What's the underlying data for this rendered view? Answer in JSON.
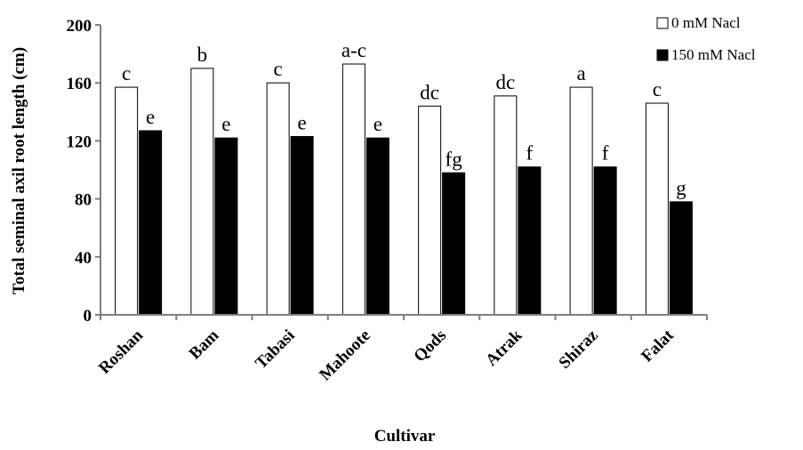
{
  "chart_data": {
    "type": "bar",
    "title": "",
    "xlabel": "Cultivar",
    "ylabel": "Total seminal axil root length (cm)",
    "ylim": [
      0,
      200
    ],
    "yticks": [
      0,
      40,
      80,
      120,
      160,
      200
    ],
    "grid": false,
    "legend_position": "top-right",
    "categories": [
      "Roshan",
      "Bam",
      "Tabasi",
      "Mahoote",
      "Qods",
      "Atrak",
      "Shiraz",
      "Falat"
    ],
    "series": [
      {
        "name": "0 mM Nacl",
        "color": "#ffffff",
        "values": [
          157,
          170,
          160,
          173,
          144,
          151,
          157,
          146
        ],
        "letters": [
          "c",
          "b",
          "c",
          "a-c",
          "dc",
          "dc",
          "a",
          "c"
        ]
      },
      {
        "name": "150 mM Nacl",
        "color": "#000000",
        "values": [
          127,
          122,
          123,
          122,
          98,
          102,
          102,
          78
        ],
        "letters": [
          "e",
          "e",
          "e",
          "e",
          "fg",
          "f",
          "f",
          "g"
        ]
      }
    ]
  }
}
